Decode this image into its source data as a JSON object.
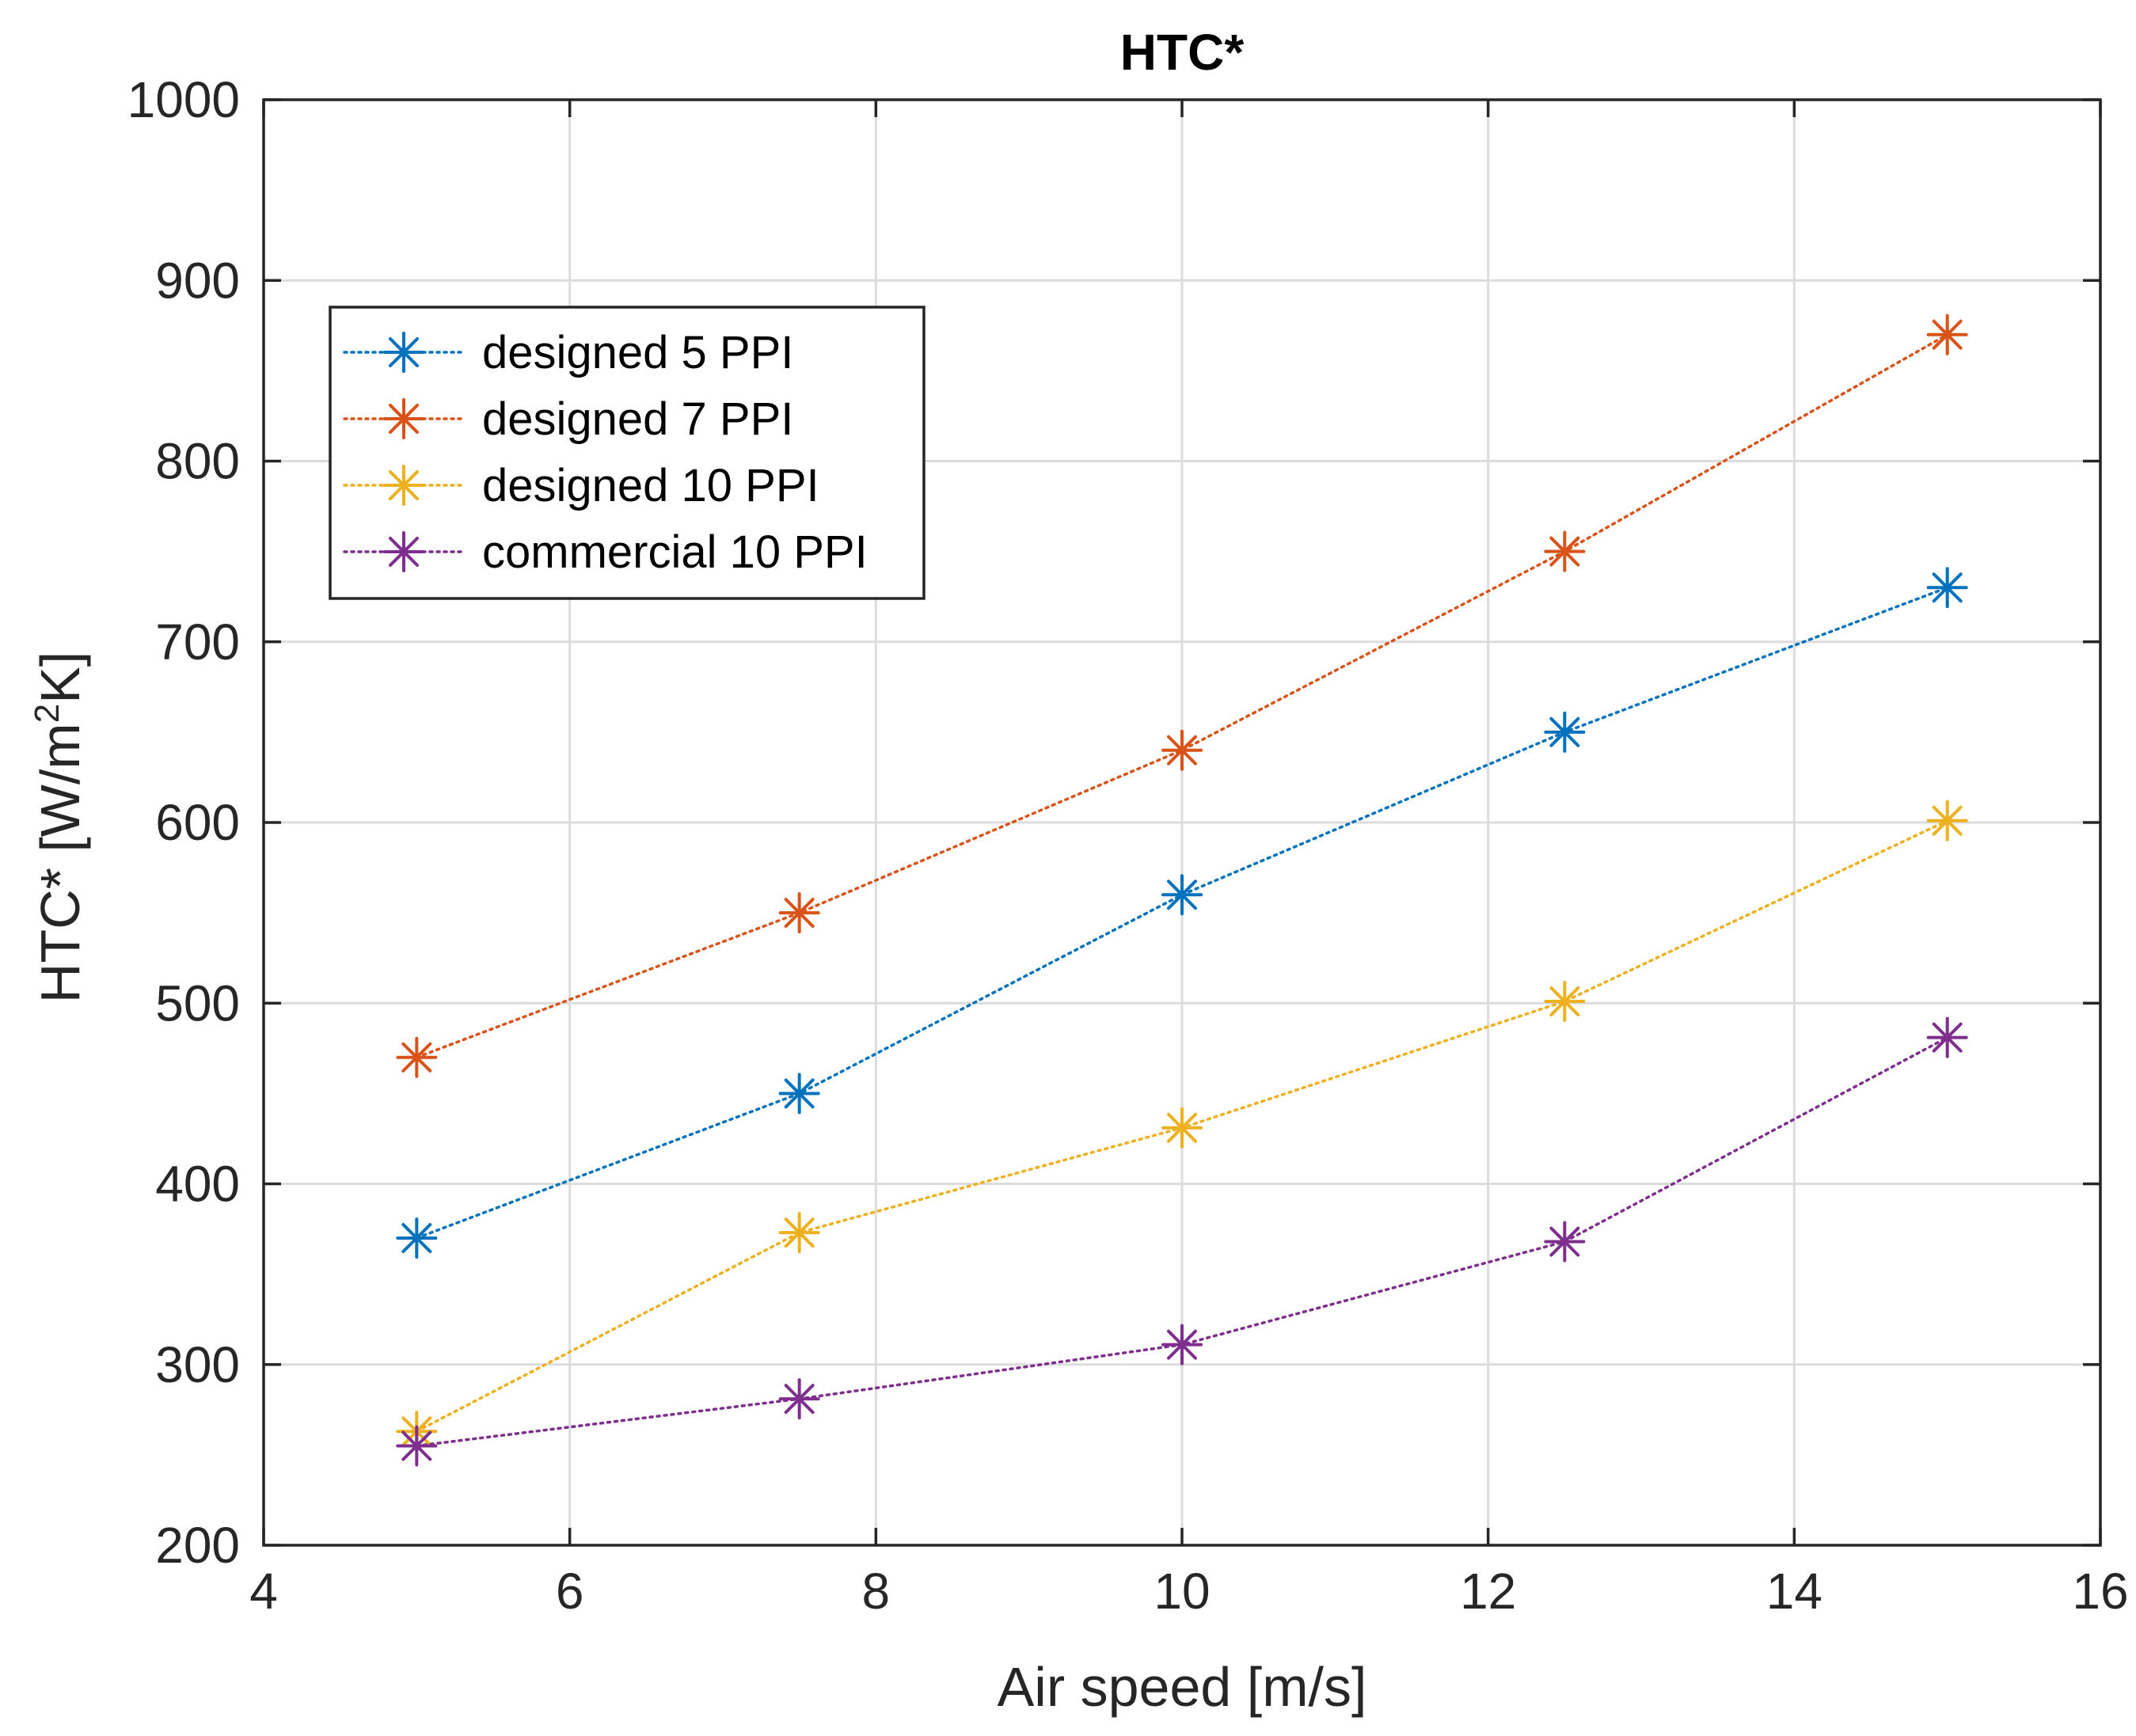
{
  "chart_data": {
    "type": "line",
    "title": "HTC*",
    "xlabel": "Air speed [m/s]",
    "ylabel": "HTC* [W/m",
    "ylabel_sup": "2",
    "ylabel_suffix": "K]",
    "xlim": [
      4,
      16
    ],
    "ylim": [
      200,
      1000
    ],
    "xticks": [
      4,
      6,
      8,
      10,
      12,
      14,
      16
    ],
    "yticks": [
      200,
      300,
      400,
      500,
      600,
      700,
      800,
      900,
      1000
    ],
    "grid": true,
    "legend_position": "top-left",
    "line_style": "dotted",
    "marker": "asterisk",
    "x": [
      5,
      7.5,
      10,
      12.5,
      15
    ],
    "series": [
      {
        "name": "designed 5 PPI",
        "color": "#0072BD",
        "values": [
          370,
          450,
          560,
          650,
          730
        ]
      },
      {
        "name": "designed 7 PPI",
        "color": "#D95319",
        "values": [
          470,
          550,
          640,
          750,
          870
        ]
      },
      {
        "name": "designed 10 PPI",
        "color": "#EDB120",
        "values": [
          263,
          373,
          431,
          501,
          601
        ]
      },
      {
        "name": "commercial 10 PPI",
        "color": "#7E2F8E",
        "values": [
          255,
          281,
          311,
          368,
          481
        ]
      }
    ]
  }
}
